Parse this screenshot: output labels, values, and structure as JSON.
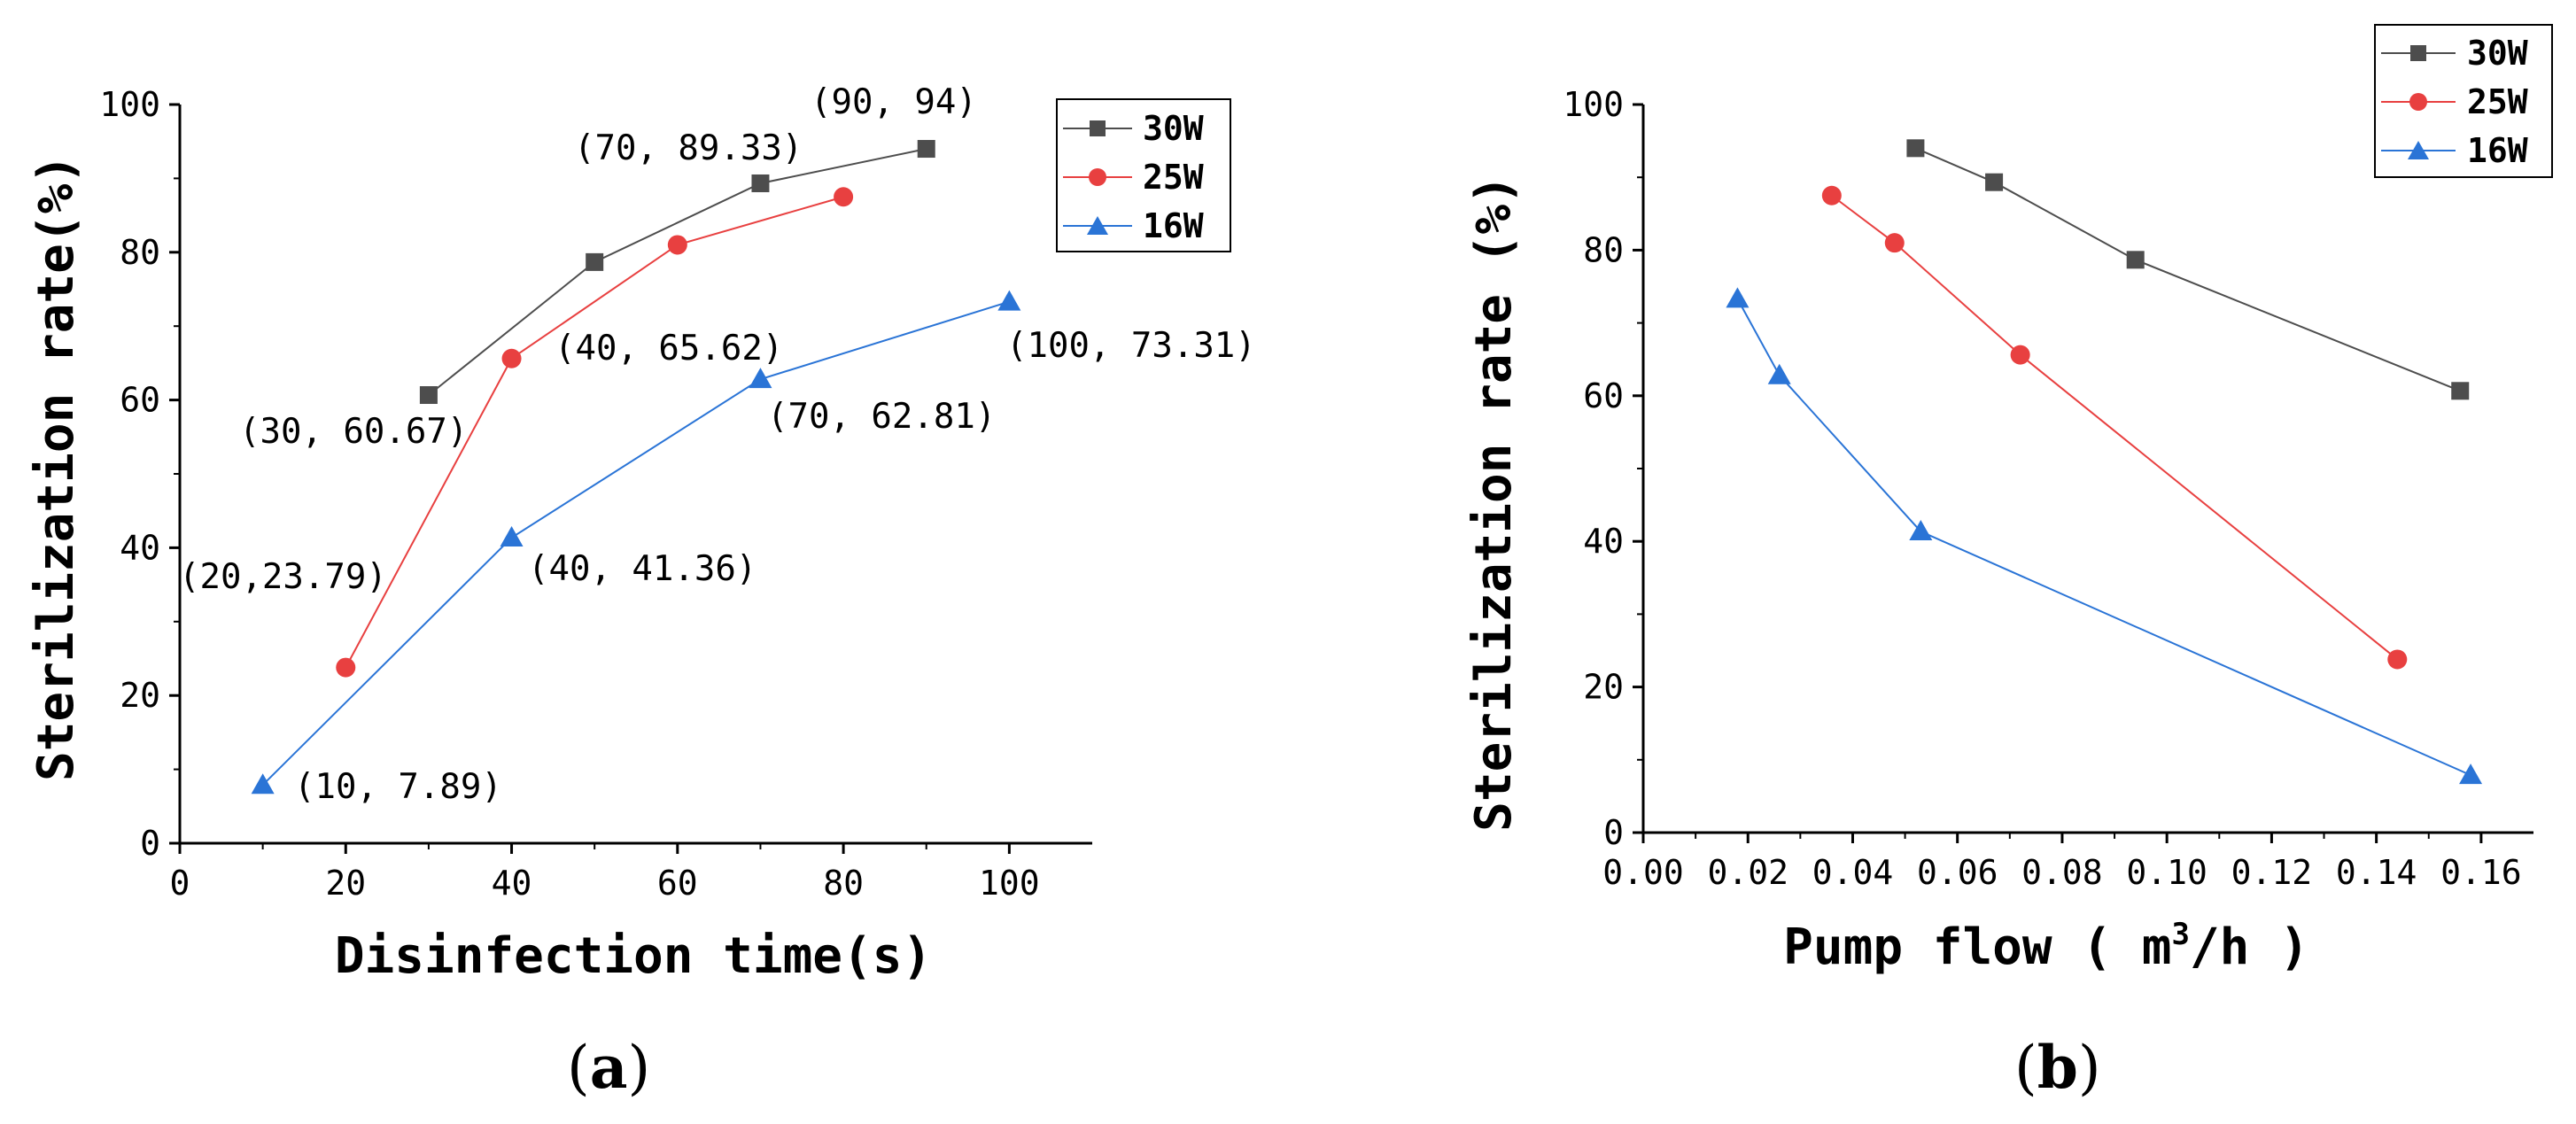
{
  "chart_data": [
    {
      "panel": "(a)",
      "panel_letter": "a",
      "type": "line",
      "title": "",
      "xlabel": "Disinfection time(s)",
      "ylabel": "Sterilization rate(%)",
      "xlim": [
        0,
        110
      ],
      "ylim": [
        0,
        100
      ],
      "xticks": [
        0,
        20,
        40,
        60,
        80,
        100
      ],
      "yticks": [
        0,
        20,
        40,
        60,
        80,
        100
      ],
      "legend": [
        "30W",
        "25W",
        "16W"
      ],
      "legend_position": "top-right",
      "series": [
        {
          "name": "30W",
          "color": "#4d4d4d",
          "marker": "square",
          "x": [
            30,
            50,
            70,
            90
          ],
          "y": [
            60.67,
            78.67,
            89.33,
            94
          ]
        },
        {
          "name": "25W",
          "color": "#e84040",
          "marker": "circle",
          "x": [
            20,
            40,
            60,
            80
          ],
          "y": [
            23.79,
            65.62,
            81,
            87.5
          ]
        },
        {
          "name": "16W",
          "color": "#2a74d6",
          "marker": "triangle",
          "x": [
            10,
            40,
            70,
            100
          ],
          "y": [
            7.89,
            41.36,
            62.81,
            73.31
          ]
        }
      ],
      "annotations": [
        {
          "text": "(90, 94)"
        },
        {
          "text": "(70, 89.33)"
        },
        {
          "text": "(40, 65.62)"
        },
        {
          "text": "(100, 73.31)"
        },
        {
          "text": "(30, 60.67)"
        },
        {
          "text": "(70, 62.81)"
        },
        {
          "text": "(20,23.79)"
        },
        {
          "text": "(40, 41.36)"
        },
        {
          "text": "(10, 7.89)"
        }
      ]
    },
    {
      "panel": "(b)",
      "panel_letter": "b",
      "type": "line",
      "title": "",
      "xlabel_main": "Pump flow ( m",
      "xlabel_sup": "3",
      "xlabel_end": "/h )",
      "ylabel": "Sterilization rate (%)",
      "xlim": [
        0,
        0.17
      ],
      "ylim": [
        0,
        100
      ],
      "xticks": [
        "0.00",
        "0.02",
        "0.04",
        "0.06",
        "0.08",
        "0.10",
        "0.12",
        "0.14",
        "0.16"
      ],
      "yticks": [
        0,
        20,
        40,
        60,
        80,
        100
      ],
      "legend": [
        "30W",
        "25W",
        "16W"
      ],
      "legend_position": "top-right",
      "series": [
        {
          "name": "30W",
          "color": "#4d4d4d",
          "marker": "square",
          "x": [
            0.052,
            0.067,
            0.094,
            0.156
          ],
          "y": [
            94,
            89.33,
            78.67,
            60.67
          ]
        },
        {
          "name": "25W",
          "color": "#e84040",
          "marker": "circle",
          "x": [
            0.036,
            0.048,
            0.072,
            0.144
          ],
          "y": [
            87.5,
            81,
            65.62,
            23.79
          ]
        },
        {
          "name": "16W",
          "color": "#2a74d6",
          "marker": "triangle",
          "x": [
            0.018,
            0.026,
            0.053,
            0.158
          ],
          "y": [
            73.31,
            62.81,
            41.36,
            7.89
          ]
        }
      ]
    }
  ]
}
